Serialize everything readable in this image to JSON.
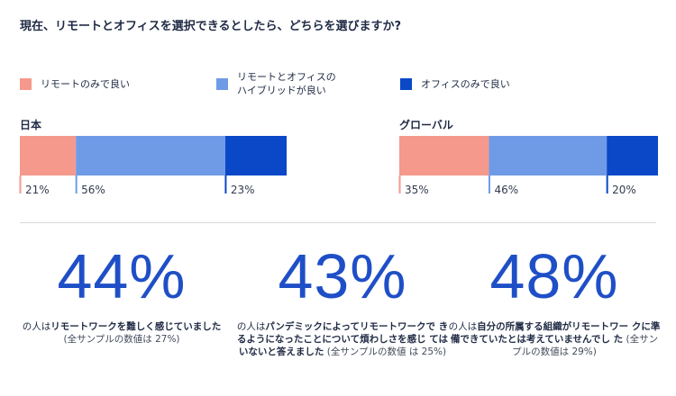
{
  "title": "現在、リモートとオフィスを選択できるとしたら、どちらを選びますか?",
  "legend": [
    {
      "label": "リモートのみで良い",
      "color": "#f4998c"
    },
    {
      "label": "リモートとオフィスの\nハイブリッドが良い",
      "color": "#6f9be6"
    },
    {
      "label": "オフィスのみで良い",
      "color": "#0a48c8"
    }
  ],
  "chart_data": [
    {
      "type": "bar",
      "orientation": "horizontal-stacked",
      "region": "日本",
      "series": [
        {
          "name": "リモートのみで良い",
          "value": 21,
          "label": "21%"
        },
        {
          "name": "リモートとオフィスのハイブリッドが良い",
          "value": 56,
          "label": "56%"
        },
        {
          "name": "オフィスのみで良い",
          "value": 23,
          "label": "23%"
        }
      ]
    },
    {
      "type": "bar",
      "orientation": "horizontal-stacked",
      "region": "グローバル",
      "series": [
        {
          "name": "リモートのみで良い",
          "value": 35,
          "label": "35%"
        },
        {
          "name": "リモートとオフィスのハイブリッドが良い",
          "value": 46,
          "label": "46%"
        },
        {
          "name": "オフィスのみで良い",
          "value": 20,
          "label": "20%"
        }
      ]
    }
  ],
  "stats": [
    {
      "big": "44%",
      "prefix": "の人は",
      "bold": "リモートワークを難しく感じていました",
      "sub": "(全サンプルの数値は 27%)"
    },
    {
      "big": "43%",
      "prefix": "の人は",
      "bold": "パンデミックによってリモートワークで きるようになったことについて煩わしさを感じ てはいないと答えました",
      "sub": "(全サンプルの数値 は 25%)"
    },
    {
      "big": "48%",
      "prefix": "の人は",
      "bold": "自分の所属する組織がリモートワー クに準備できていたとは考えていませんでし た",
      "sub": "(全サンプルの数値は 29%)"
    }
  ]
}
